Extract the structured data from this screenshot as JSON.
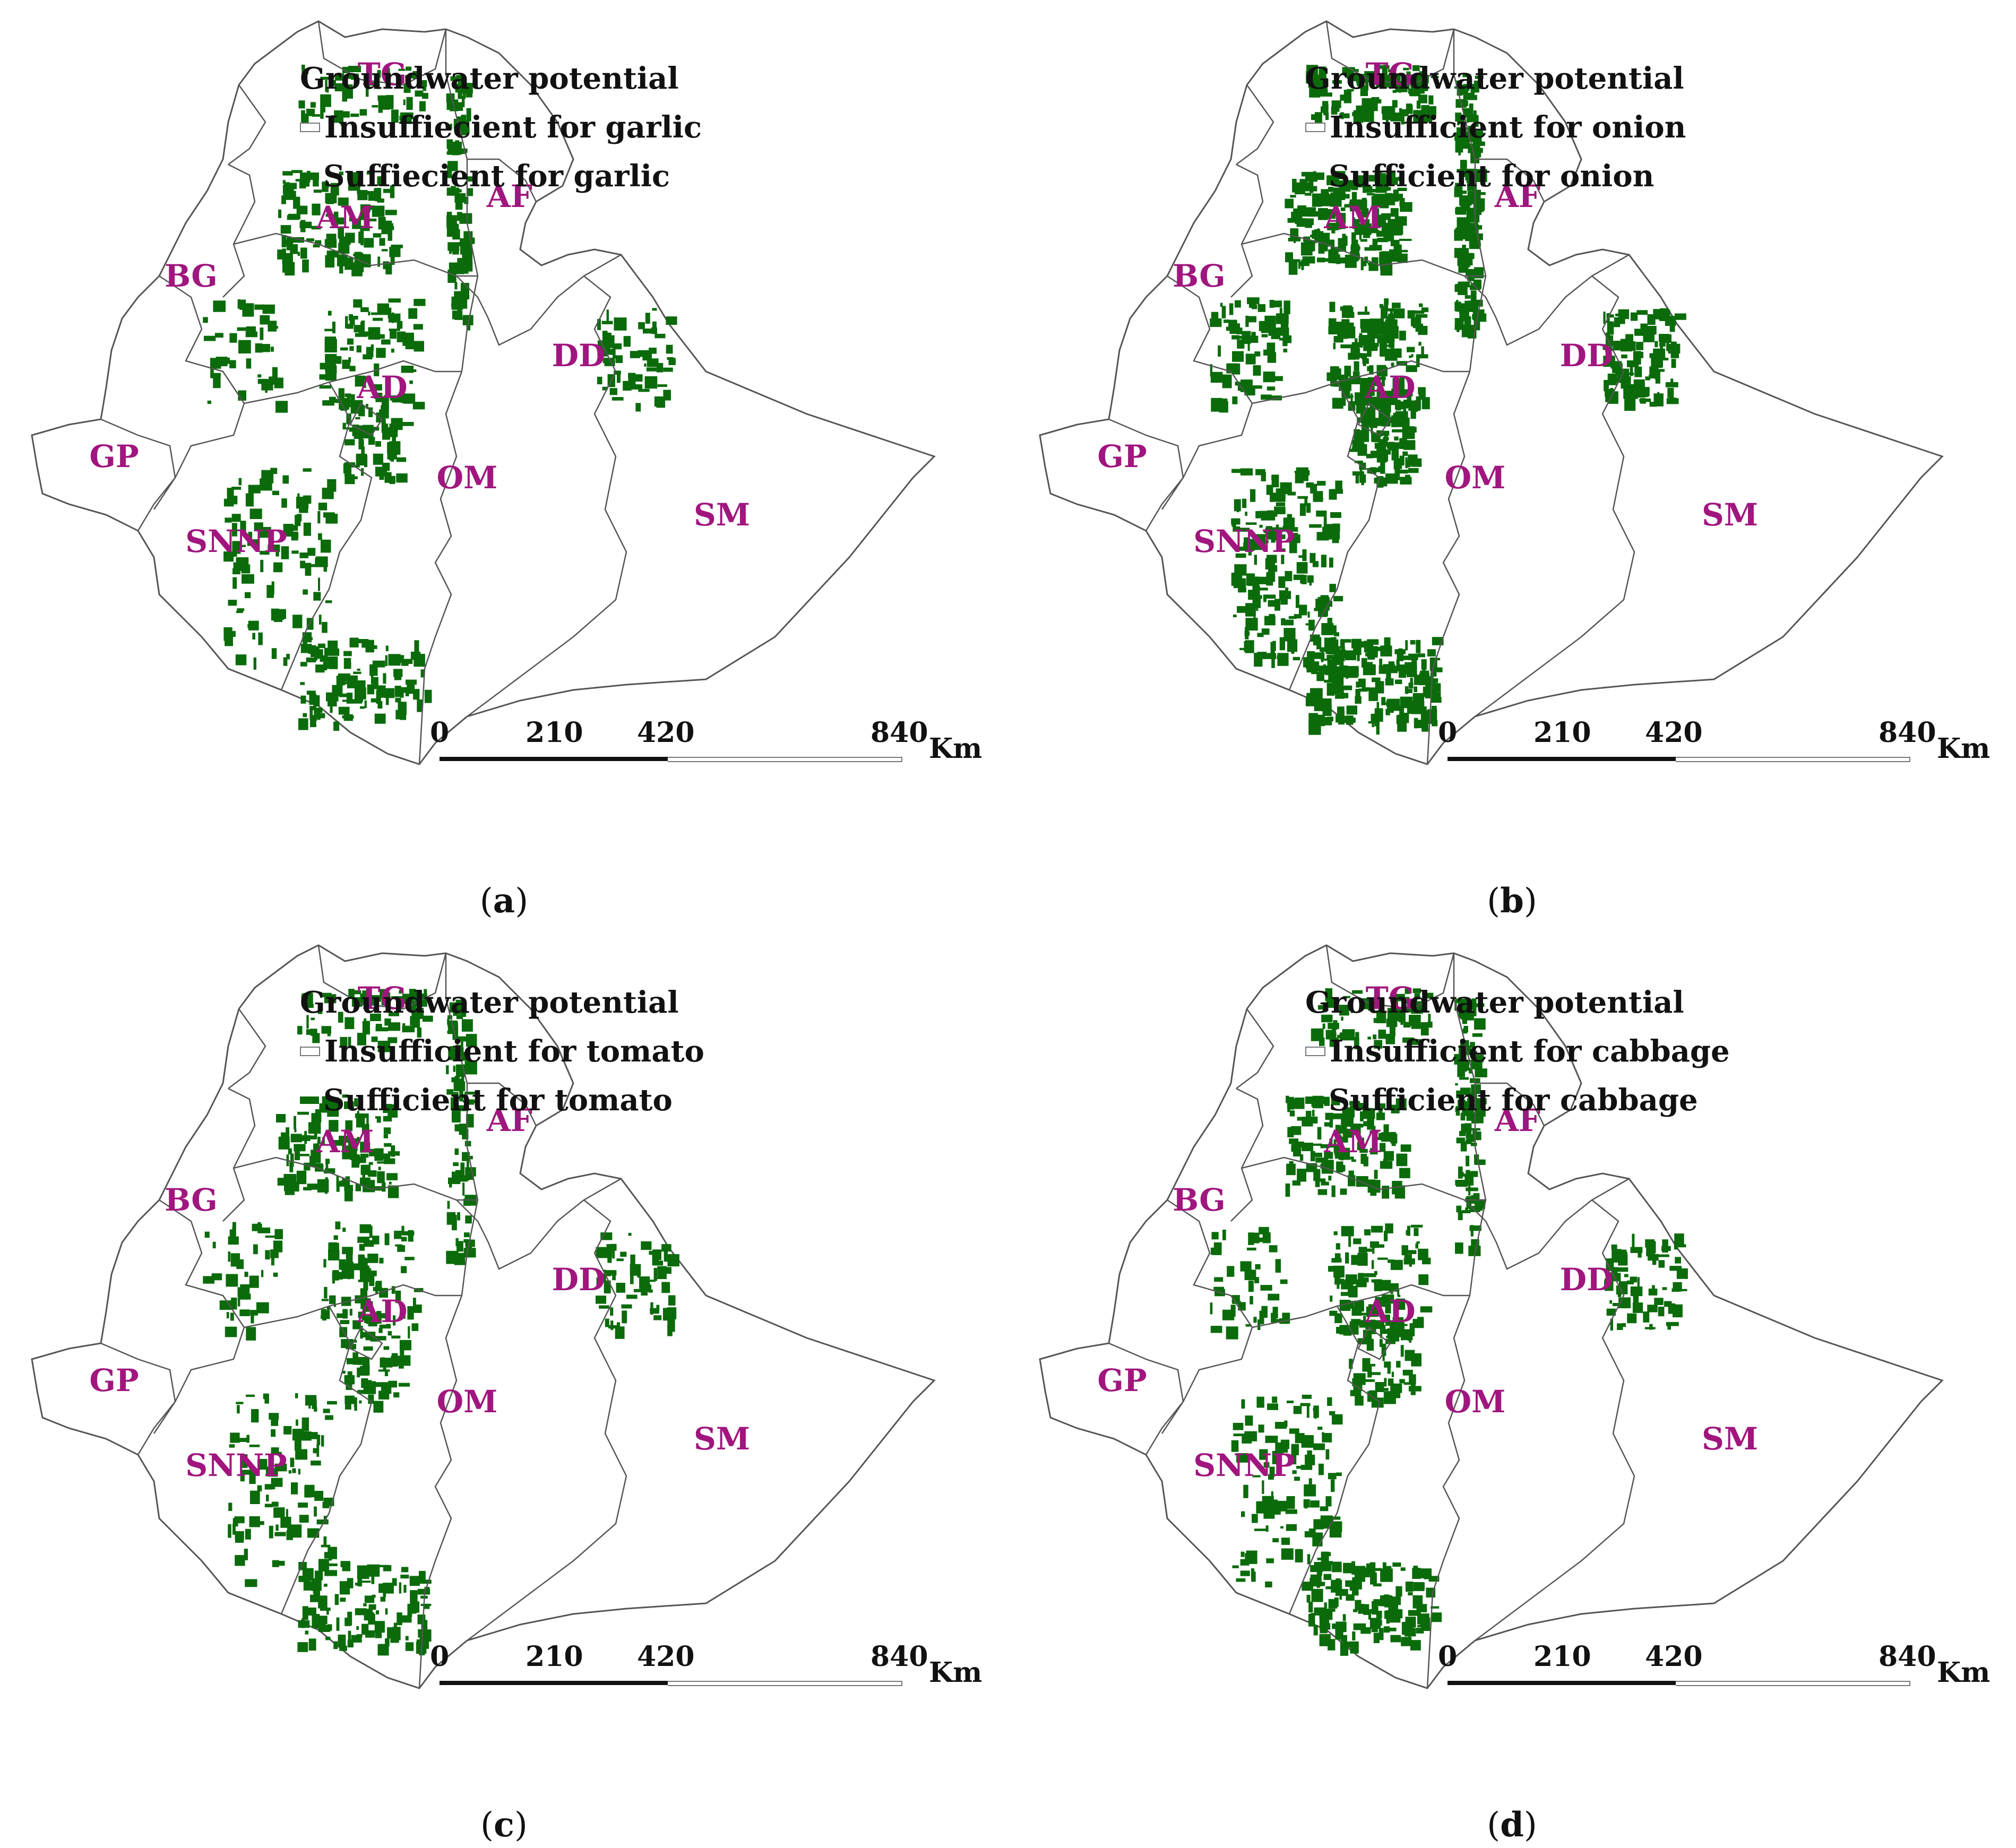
{
  "panels": [
    {
      "caption_letter": "a",
      "legend": {
        "title": "Groundwater potential",
        "insufficient": "Insuffiecient for garlic",
        "sufficient": "Suffiecient for garlic"
      }
    },
    {
      "caption_letter": "b",
      "legend": {
        "title": "Groundwater potential",
        "insufficient": "Insufficient for onion",
        "sufficient": "Sufficient for onion"
      }
    },
    {
      "caption_letter": "c",
      "legend": {
        "title": "Groundwater potential",
        "insufficient": "Insufficient for tomato",
        "sufficient": "Sufficient for tomato"
      }
    },
    {
      "caption_letter": "d",
      "legend": {
        "title": "Groundwater potential",
        "insufficient": "Insufficient for cabbage",
        "sufficient": "Sufficient for cabbage"
      }
    }
  ],
  "region_labels": [
    "TG",
    "AF",
    "AM",
    "BG",
    "DD",
    "AD",
    "GP",
    "OM",
    "SNNP",
    "SM"
  ],
  "scale": {
    "ticks": [
      "0",
      "210",
      "420",
      "840"
    ],
    "unit": "Km"
  },
  "caption": {
    "open": "(",
    "close": ")"
  },
  "colors": {
    "sufficient": "#0b6b0b",
    "insufficient": "#ffffff",
    "label": "#a0167e",
    "border": "#555555"
  }
}
